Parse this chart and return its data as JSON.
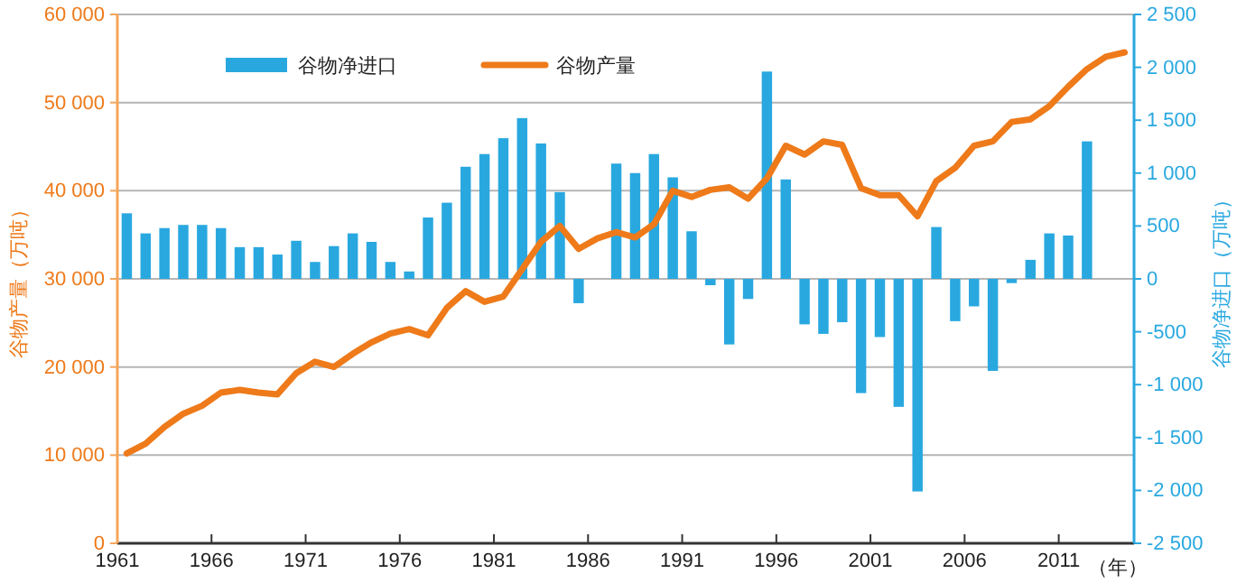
{
  "chart_data": {
    "type": "bar",
    "xlabel": "（年）",
    "ylabel": "谷物产量（万吨）",
    "y2label": "谷物净进口（万吨）",
    "x": [
      1961,
      1962,
      1963,
      1964,
      1965,
      1966,
      1967,
      1968,
      1969,
      1970,
      1971,
      1972,
      1973,
      1974,
      1975,
      1976,
      1977,
      1978,
      1979,
      1980,
      1981,
      1982,
      1983,
      1984,
      1985,
      1986,
      1987,
      1988,
      1989,
      1990,
      1991,
      1992,
      1993,
      1994,
      1995,
      1996,
      1997,
      1998,
      1999,
      2000,
      2001,
      2002,
      2003,
      2004,
      2005,
      2006,
      2007,
      2008,
      2009,
      2010,
      2011,
      2012,
      2013,
      2014
    ],
    "xlim": [
      1960.5,
      2014.5
    ],
    "xticks": [
      {
        "value": 1960.5,
        "label": "1961"
      },
      {
        "value": 1965.5,
        "label": "1966"
      },
      {
        "value": 1970.5,
        "label": "1971"
      },
      {
        "value": 1975.5,
        "label": "1976"
      },
      {
        "value": 1980.5,
        "label": "1981"
      },
      {
        "value": 1985.5,
        "label": "1986"
      },
      {
        "value": 1990.5,
        "label": "1991"
      },
      {
        "value": 1995.5,
        "label": "1996"
      },
      {
        "value": 2000.5,
        "label": "2001"
      },
      {
        "value": 2005.5,
        "label": "2006"
      },
      {
        "value": 2010.5,
        "label": "2011"
      }
    ],
    "ylim": [
      0,
      60000
    ],
    "yticks": [
      0,
      {
        "value": 10000,
        "label": "10 000"
      },
      {
        "value": 20000,
        "label": "20 000"
      },
      {
        "value": 30000,
        "label": "30 000"
      },
      {
        "value": 40000,
        "label": "40 000"
      },
      {
        "value": 50000,
        "label": "50 000"
      },
      {
        "value": 60000,
        "label": "60 000"
      }
    ],
    "y2lim": [
      -2500,
      2500
    ],
    "y2ticks": [
      {
        "value": -2500,
        "label": "-2 500"
      },
      {
        "value": -2000,
        "label": "-2 000"
      },
      {
        "value": -1500,
        "label": "-1 500"
      },
      {
        "value": -1000,
        "label": "-1 000"
      },
      -500,
      0,
      500,
      {
        "value": 1000,
        "label": "1 000"
      },
      {
        "value": 1500,
        "label": "1 500"
      },
      {
        "value": 2000,
        "label": "2 000"
      },
      {
        "value": 2500,
        "label": "2 500"
      }
    ],
    "grid": "y",
    "legend": "top left",
    "series": [
      {
        "name": "谷物净进口",
        "axis": "y2",
        "color": "#29a8e0",
        "values": [
          620,
          430,
          480,
          510,
          510,
          480,
          300,
          300,
          230,
          360,
          160,
          310,
          430,
          350,
          160,
          70,
          580,
          720,
          1060,
          1180,
          1330,
          1520,
          1280,
          820,
          -230,
          0,
          1090,
          1000,
          1180,
          960,
          450,
          -60,
          -620,
          -190,
          1960,
          940,
          -430,
          -520,
          -410,
          -1080,
          -550,
          -1210,
          -2010,
          490,
          -400,
          -260,
          -870,
          -40,
          180,
          430,
          410,
          1300,
          null,
          null
        ]
      },
      {
        "name": "谷物产量",
        "type": "line",
        "color": "#ee7a1a",
        "values": [
          10200,
          11300,
          13200,
          14700,
          15600,
          17100,
          17400,
          17100,
          16900,
          19300,
          20600,
          20000,
          21500,
          22800,
          23800,
          24300,
          23600,
          26700,
          28600,
          27400,
          28000,
          31100,
          34200,
          36000,
          33400,
          34600,
          35300,
          34700,
          36200,
          40000,
          39300,
          40100,
          40400,
          39100,
          41400,
          45100,
          44100,
          45600,
          45200,
          40300,
          39500,
          39500,
          37100,
          41100,
          42600,
          45100,
          45600,
          47800,
          48100,
          49600,
          51800,
          53800,
          55200,
          55700
        ]
      }
    ]
  }
}
